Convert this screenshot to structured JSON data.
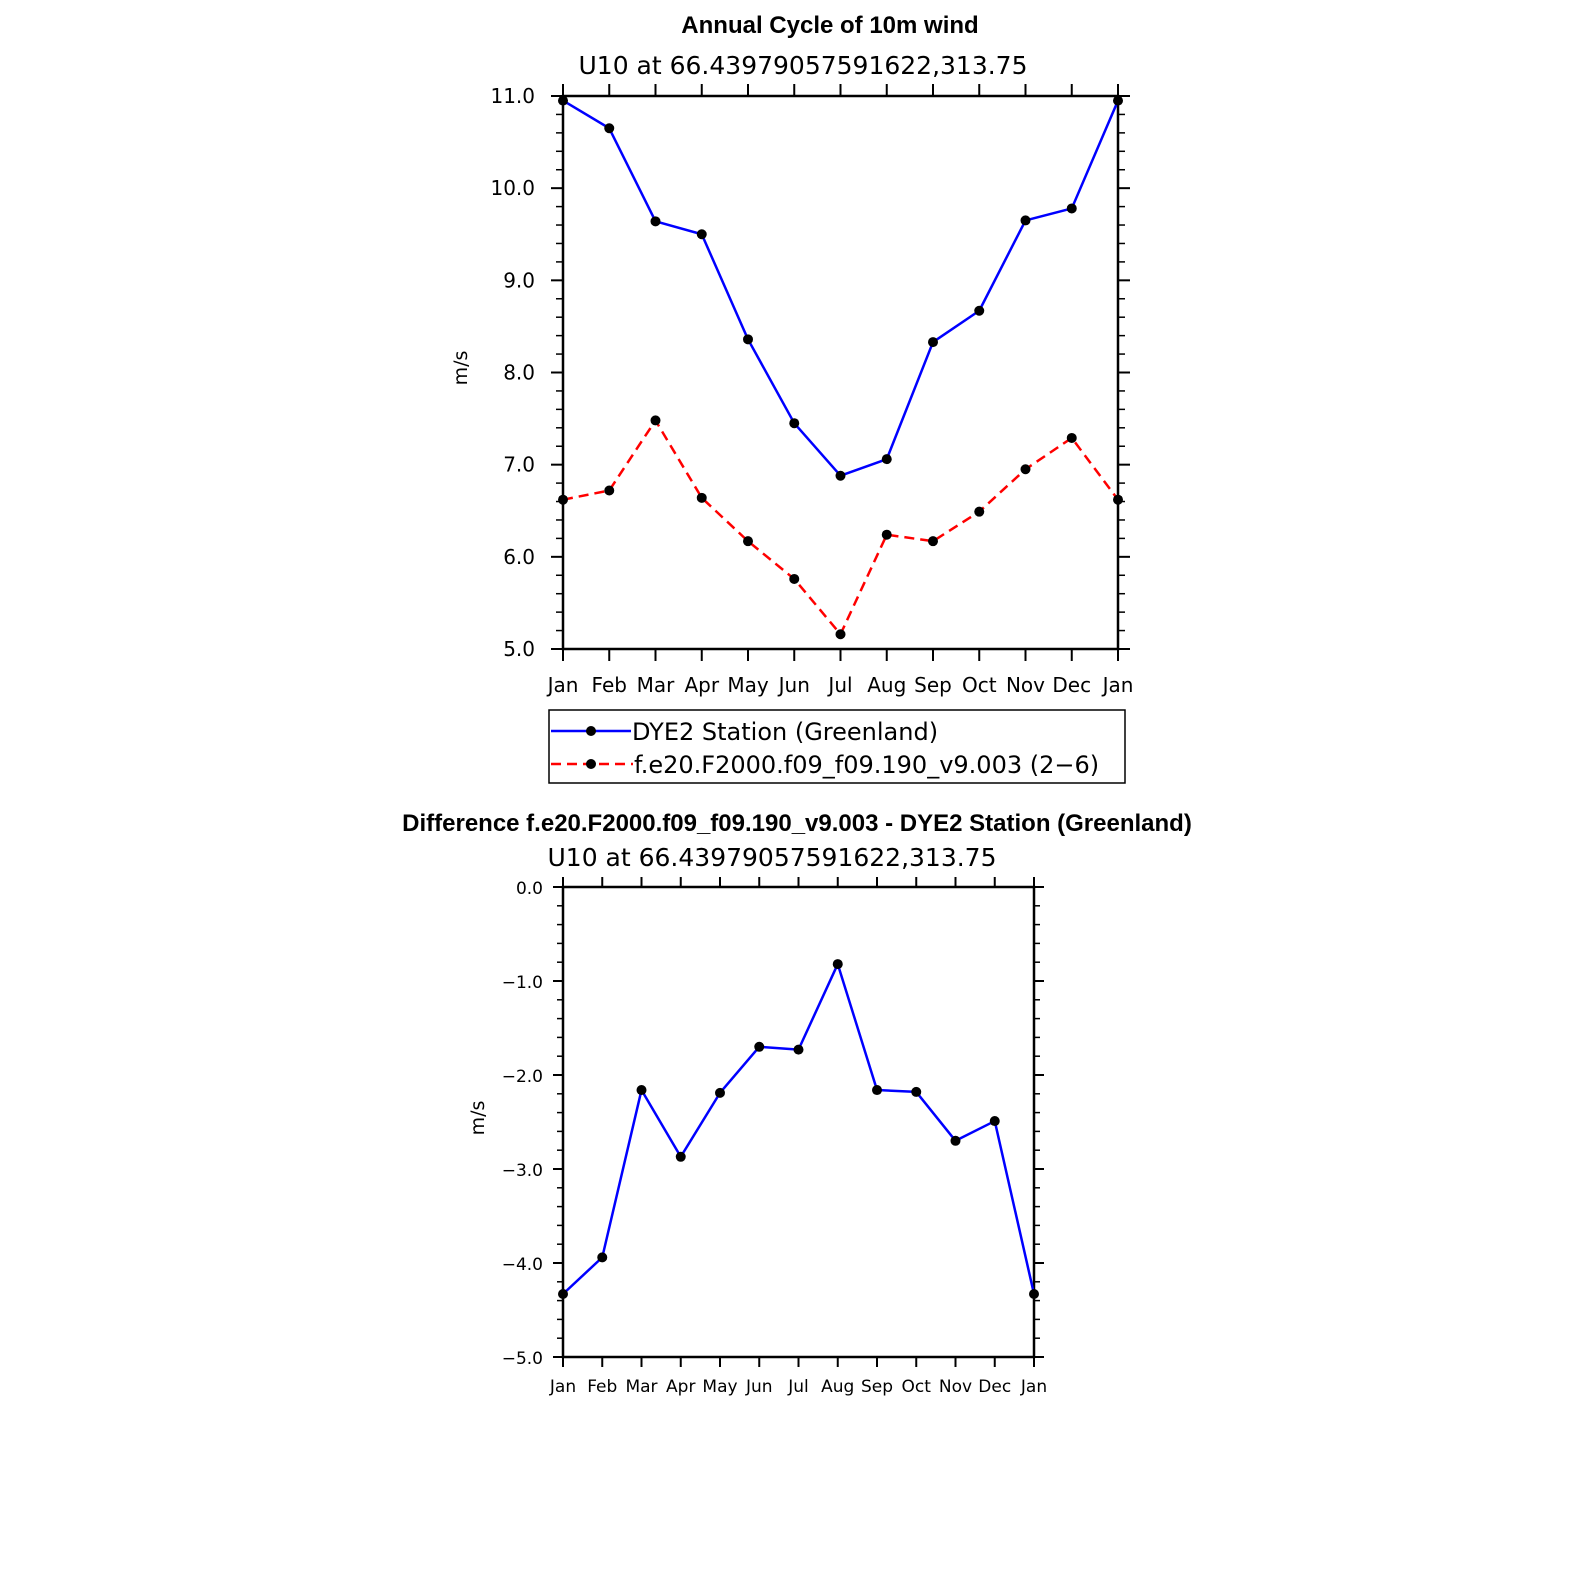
{
  "chart_data": [
    {
      "type": "line",
      "title": "Annual Cycle of 10m wind",
      "subtitle": "U10  at  66.43979057591622,313.75",
      "ylabel": "m/s",
      "xlabel": "",
      "ylim": [
        5.0,
        11.0
      ],
      "yticks": [
        "5.0",
        "6.0",
        "7.0",
        "8.0",
        "9.0",
        "10.0",
        "11.0"
      ],
      "categories": [
        "Jan",
        "Feb",
        "Mar",
        "Apr",
        "May",
        "Jun",
        "Jul",
        "Aug",
        "Sep",
        "Oct",
        "Nov",
        "Dec",
        "Jan"
      ],
      "series": [
        {
          "name": "DYE2 Station (Greenland)",
          "color": "#0000ff",
          "dash": "solid",
          "values": [
            10.95,
            10.65,
            9.64,
            9.5,
            8.36,
            7.45,
            6.88,
            7.06,
            8.33,
            8.67,
            9.65,
            9.78,
            10.95
          ]
        },
        {
          "name": "f.e20.F2000.f09_f09.190_v9.003 (2−6)",
          "color": "#ff0000",
          "dash": "dashed",
          "values": [
            6.62,
            6.72,
            7.48,
            6.64,
            6.17,
            5.76,
            5.16,
            6.24,
            6.17,
            6.49,
            6.95,
            7.29,
            6.62
          ]
        }
      ],
      "legend_position": "below"
    },
    {
      "type": "line",
      "title": "Difference f.e20.F2000.f09_f09.190_v9.003 - DYE2 Station (Greenland)",
      "subtitle": "U10  at  66.43979057591622,313.75",
      "ylabel": "m/s",
      "xlabel": "",
      "ylim": [
        -5.0,
        0.0
      ],
      "yticks": [
        "−5.0",
        "−4.0",
        "−3.0",
        "−2.0",
        "−1.0",
        "0.0"
      ],
      "categories": [
        "Jan",
        "Feb",
        "Mar",
        "Apr",
        "May",
        "Jun",
        "Jul",
        "Aug",
        "Sep",
        "Oct",
        "Nov",
        "Dec",
        "Jan"
      ],
      "series": [
        {
          "name": "Difference",
          "color": "#0000ff",
          "dash": "solid",
          "values": [
            -4.33,
            -3.94,
            -2.16,
            -2.87,
            -2.19,
            -1.7,
            -1.73,
            -0.82,
            -2.16,
            -2.18,
            -2.7,
            -2.49,
            -4.33
          ]
        }
      ]
    }
  ]
}
